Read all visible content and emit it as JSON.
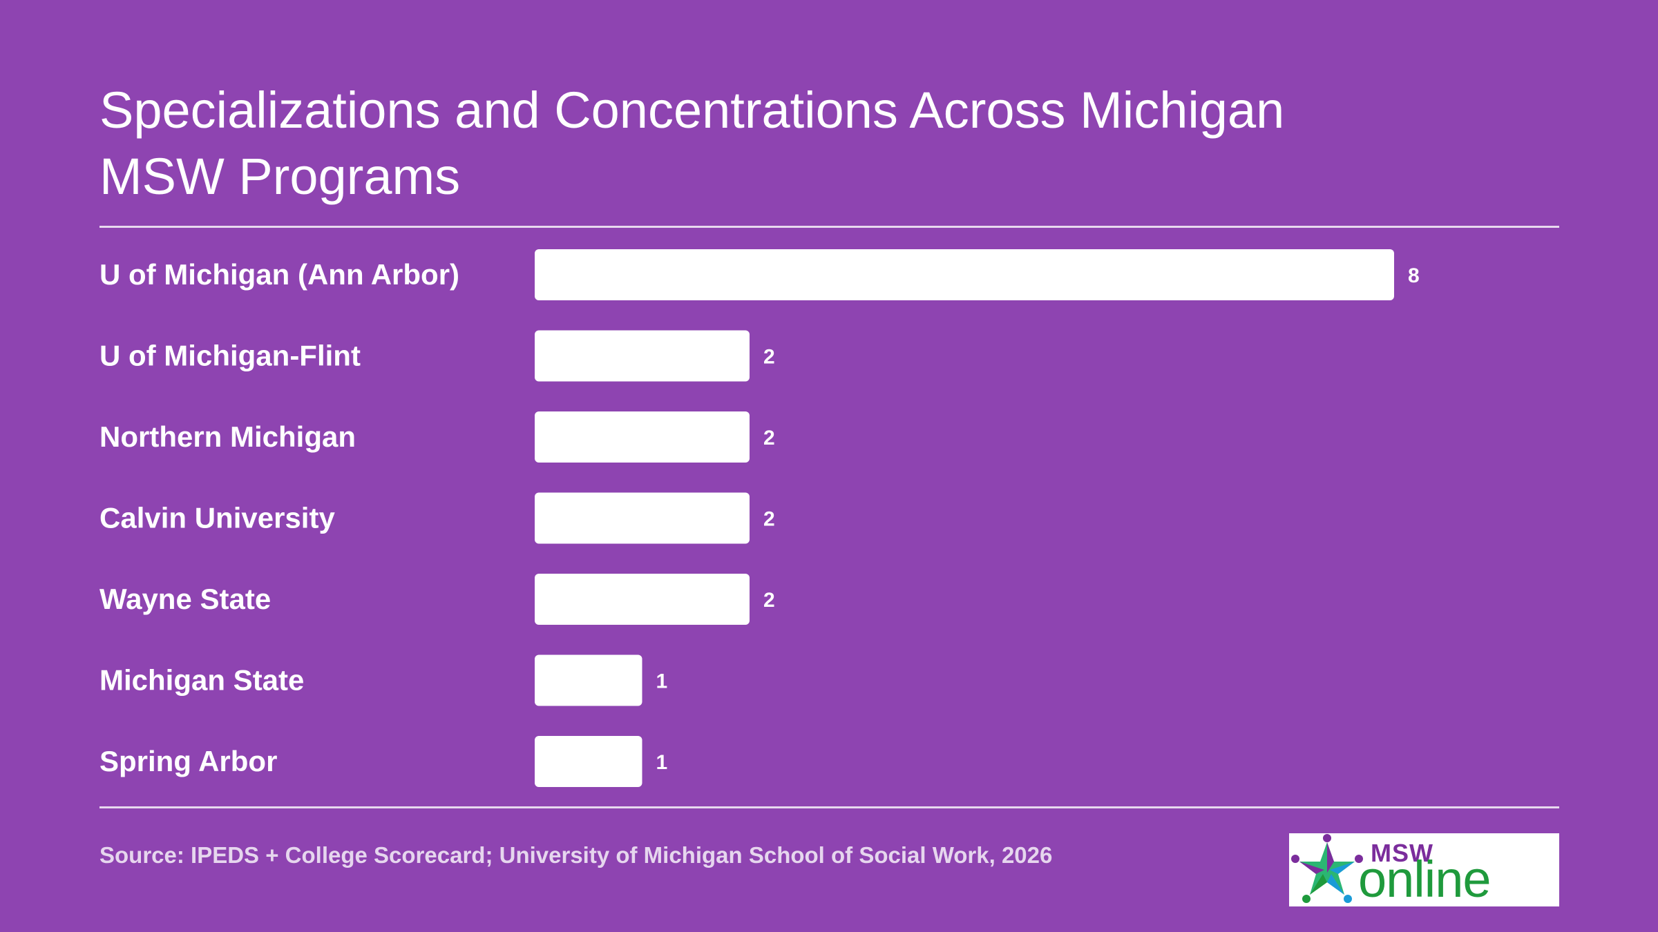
{
  "title": "Specializations and Concentrations Across Michigan MSW Programs",
  "source": "Source: IPEDS + College Scorecard; University of Michigan School of Social Work, 2026",
  "logo": {
    "msw": "MSW",
    "online": "online"
  },
  "colors": {
    "background": "#8e44b1",
    "bar": "#ffffff",
    "text": "#ffffff",
    "logo_purple": "#7b2d9c",
    "logo_green": "#1f9a3c"
  },
  "chart_data": {
    "type": "bar",
    "orientation": "horizontal",
    "categories": [
      "U of Michigan (Ann Arbor)",
      "U of Michigan-Flint",
      "Northern Michigan",
      "Calvin University",
      "Wayne State",
      "Michigan State",
      "Spring Arbor"
    ],
    "values": [
      8,
      2,
      2,
      2,
      2,
      1,
      1
    ],
    "title": "Specializations and Concentrations Across Michigan MSW Programs",
    "xlabel": "",
    "ylabel": "",
    "xlim": [
      0,
      8
    ],
    "grid": false,
    "data_labels": true
  }
}
